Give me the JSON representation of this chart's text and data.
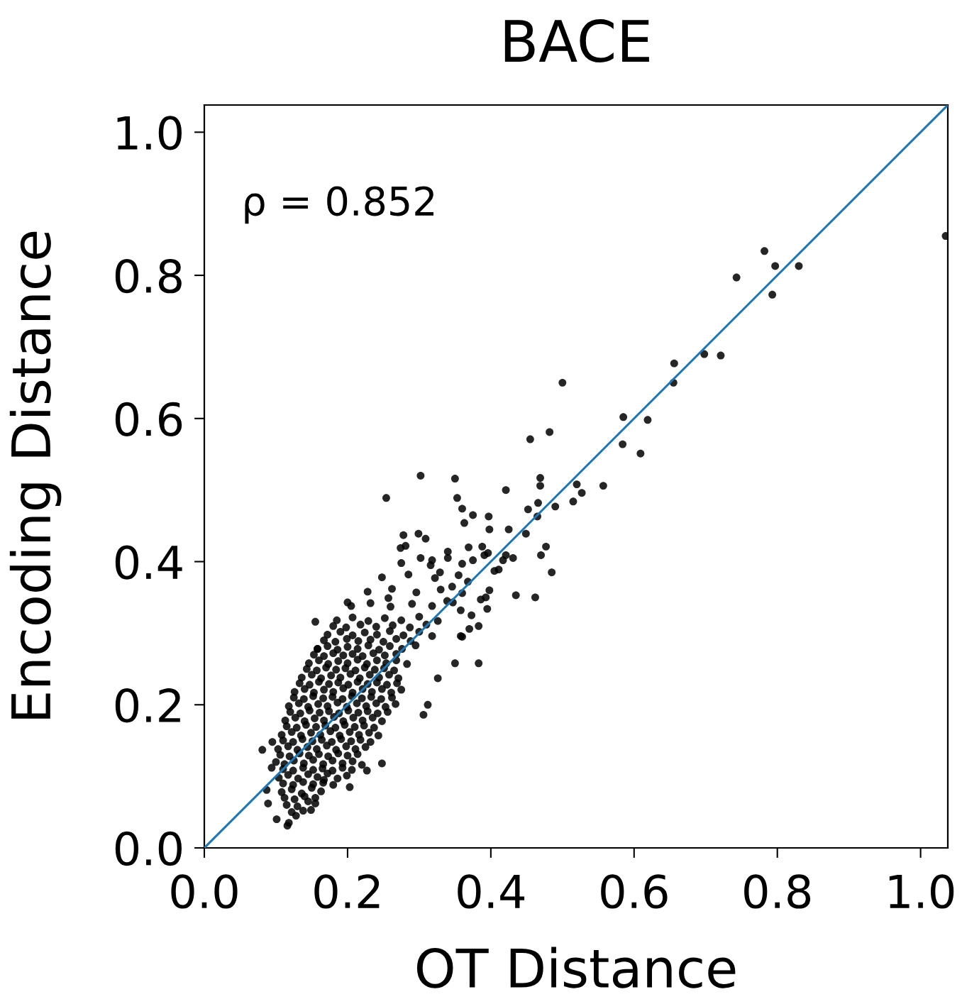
{
  "chart_data": {
    "type": "scatter",
    "title": "BACE",
    "xlabel": "OT Distance",
    "ylabel": "Encoding Distance",
    "annotations": [
      "ρ = 0.852"
    ],
    "xlim": [
      0,
      1.038
    ],
    "ylim": [
      0,
      1.038
    ],
    "xticks": [
      {
        "value": 0,
        "label": "0.0"
      },
      0.2,
      0.4,
      0.6,
      0.8,
      {
        "value": 1,
        "label": "1.0"
      }
    ],
    "yticks": [
      {
        "value": 0,
        "label": "0.0"
      },
      0.2,
      0.4,
      0.6,
      0.8,
      {
        "value": 1,
        "label": "1.0"
      }
    ],
    "series": [
      {
        "color": "#000000",
        "marker": "circle",
        "x": [
          0.118,
          0.128,
          0.115,
          0.13,
          0.145,
          0.108,
          0.122,
          0.136,
          0.15,
          0.163,
          0.104,
          0.117,
          0.131,
          0.145,
          0.158,
          0.172,
          0.186,
          0.199,
          0.1,
          0.112,
          0.125,
          0.139,
          0.152,
          0.166,
          0.179,
          0.193,
          0.207,
          0.22,
          0.103,
          0.117,
          0.13,
          0.144,
          0.157,
          0.171,
          0.184,
          0.198,
          0.211,
          0.225,
          0.108,
          0.122,
          0.135,
          0.149,
          0.162,
          0.176,
          0.189,
          0.203,
          0.216,
          0.23,
          0.243,
          0.113,
          0.127,
          0.14,
          0.154,
          0.167,
          0.181,
          0.194,
          0.208,
          0.221,
          0.235,
          0.248,
          0.118,
          0.132,
          0.145,
          0.159,
          0.172,
          0.186,
          0.199,
          0.213,
          0.226,
          0.24,
          0.253,
          0.267,
          0.126,
          0.14,
          0.153,
          0.167,
          0.18,
          0.194,
          0.207,
          0.221,
          0.234,
          0.248,
          0.261,
          0.275,
          0.136,
          0.15,
          0.163,
          0.177,
          0.19,
          0.204,
          0.217,
          0.231,
          0.244,
          0.258,
          0.271,
          0.146,
          0.16,
          0.173,
          0.187,
          0.2,
          0.214,
          0.227,
          0.241,
          0.254,
          0.268,
          0.283,
          0.158,
          0.172,
          0.186,
          0.2,
          0.214,
          0.229,
          0.244,
          0.259,
          0.276,
          0.295,
          0.172,
          0.19,
          0.207,
          0.224,
          0.241,
          0.259,
          0.278,
          0.3,
          0.318,
          0.185,
          0.207,
          0.229,
          0.252,
          0.275,
          0.3,
          0.326,
          0.205,
          0.232,
          0.26,
          0.29,
          0.318,
          0.347,
          0.228,
          0.262,
          0.296,
          0.33,
          0.36,
          0.248,
          0.285,
          0.322,
          0.355,
          0.275,
          0.318,
          0.36,
          1.035,
          0.782,
          0.797,
          0.83,
          0.743,
          0.793,
          0.698,
          0.721,
          0.656,
          0.655,
          0.5,
          0.585,
          0.619,
          0.584,
          0.609,
          0.482,
          0.455,
          0.302,
          0.35,
          0.469,
          0.469,
          0.254,
          0.421,
          0.353,
          0.52,
          0.527,
          0.557,
          0.515,
          0.49,
          0.466,
          0.36,
          0.452,
          0.363,
          0.375,
          0.397,
          0.449,
          0.425,
          0.477,
          0.47,
          0.485,
          0.435,
          0.462,
          0.278,
          0.299,
          0.309,
          0.281,
          0.34,
          0.34,
          0.257,
          0.383,
          0.393,
          0.405,
          0.417,
          0.396,
          0.388,
          0.369,
          0.081,
          0.095,
          0.094,
          0.087,
          0.089,
          0.101,
          0.116,
          0.155,
          0.167,
          0.203,
          0.227,
          0.248,
          0.155,
          0.306,
          0.312,
          0.35,
          0.36,
          0.326,
          0.149,
          0.2,
          0.158,
          0.465,
          0.421,
          0.398,
          0.395,
          0.383,
          0.37,
          0.358,
          0.274,
          0.302,
          0.316,
          0.375,
          0.391,
          0.411,
          0.431,
          0.398,
          0.386,
          0.373,
          0.358,
          0.339,
          0.329,
          0.346,
          0.368,
          0.122,
          0.138,
          0.112,
          0.126,
          0.14,
          0.155,
          0.11,
          0.124,
          0.138,
          0.152,
          0.166,
          0.18,
          0.11,
          0.124,
          0.138,
          0.152,
          0.165,
          0.179,
          0.193,
          0.206,
          0.106,
          0.119,
          0.133,
          0.146,
          0.16,
          0.173,
          0.187,
          0.2,
          0.214,
          0.11,
          0.124,
          0.137,
          0.151,
          0.164,
          0.178,
          0.191,
          0.205,
          0.218,
          0.232,
          0.115,
          0.129,
          0.142,
          0.156,
          0.169,
          0.183,
          0.196,
          0.21,
          0.223,
          0.237,
          0.12,
          0.134,
          0.147,
          0.161,
          0.174,
          0.188,
          0.201,
          0.215,
          0.228,
          0.242,
          0.256,
          0.125,
          0.139,
          0.152,
          0.166,
          0.179,
          0.193,
          0.206,
          0.22,
          0.233,
          0.247,
          0.262,
          0.133,
          0.147,
          0.16,
          0.174,
          0.187,
          0.201,
          0.214,
          0.228,
          0.241,
          0.255,
          0.269,
          0.143,
          0.157,
          0.17,
          0.184,
          0.197,
          0.211,
          0.224,
          0.238,
          0.251,
          0.265,
          0.153,
          0.167,
          0.18,
          0.194,
          0.207,
          0.221,
          0.236,
          0.252,
          0.268,
          0.167,
          0.183,
          0.199,
          0.215,
          0.232,
          0.25,
          0.268,
          0.288,
          0.18,
          0.198,
          0.218,
          0.24,
          0.263,
          0.287,
          0.31
        ],
        "values": [
          0.035,
          0.045,
          0.06,
          0.058,
          0.065,
          0.078,
          0.082,
          0.076,
          0.084,
          0.079,
          0.098,
          0.102,
          0.097,
          0.103,
          0.099,
          0.104,
          0.097,
          0.101,
          0.12,
          0.117,
          0.122,
          0.118,
          0.123,
          0.117,
          0.122,
          0.118,
          0.121,
          0.116,
          0.138,
          0.142,
          0.137,
          0.141,
          0.138,
          0.143,
          0.137,
          0.142,
          0.138,
          0.141,
          0.158,
          0.162,
          0.157,
          0.161,
          0.158,
          0.163,
          0.157,
          0.162,
          0.158,
          0.161,
          0.157,
          0.178,
          0.182,
          0.177,
          0.181,
          0.178,
          0.183,
          0.177,
          0.182,
          0.178,
          0.182,
          0.177,
          0.198,
          0.202,
          0.197,
          0.201,
          0.198,
          0.203,
          0.197,
          0.202,
          0.198,
          0.202,
          0.197,
          0.201,
          0.218,
          0.222,
          0.217,
          0.221,
          0.218,
          0.223,
          0.217,
          0.222,
          0.218,
          0.222,
          0.217,
          0.221,
          0.238,
          0.242,
          0.237,
          0.241,
          0.238,
          0.243,
          0.237,
          0.242,
          0.238,
          0.242,
          0.237,
          0.258,
          0.262,
          0.257,
          0.261,
          0.258,
          0.263,
          0.257,
          0.262,
          0.258,
          0.262,
          0.257,
          0.278,
          0.282,
          0.277,
          0.281,
          0.278,
          0.283,
          0.277,
          0.282,
          0.278,
          0.283,
          0.298,
          0.302,
          0.297,
          0.301,
          0.298,
          0.303,
          0.297,
          0.302,
          0.296,
          0.318,
          0.322,
          0.317,
          0.321,
          0.318,
          0.323,
          0.317,
          0.338,
          0.342,
          0.337,
          0.341,
          0.338,
          0.343,
          0.358,
          0.362,
          0.357,
          0.361,
          0.356,
          0.378,
          0.382,
          0.377,
          0.381,
          0.398,
          0.402,
          0.397,
          0.855,
          0.834,
          0.813,
          0.813,
          0.797,
          0.773,
          0.69,
          0.688,
          0.677,
          0.65,
          0.65,
          0.602,
          0.598,
          0.564,
          0.551,
          0.581,
          0.571,
          0.52,
          0.516,
          0.517,
          0.506,
          0.489,
          0.5,
          0.489,
          0.508,
          0.496,
          0.506,
          0.484,
          0.477,
          0.482,
          0.474,
          0.473,
          0.454,
          0.465,
          0.463,
          0.439,
          0.445,
          0.421,
          0.409,
          0.385,
          0.353,
          0.35,
          0.437,
          0.439,
          0.432,
          0.422,
          0.414,
          0.405,
          0.349,
          0.258,
          0.35,
          0.387,
          0.402,
          0.412,
          0.421,
          0.42,
          0.137,
          0.148,
          0.112,
          0.081,
          0.062,
          0.04,
          0.031,
          0.062,
          0.095,
          0.085,
          0.108,
          0.118,
          0.316,
          0.186,
          0.2,
          0.258,
          0.295,
          0.237,
          0.053,
          0.343,
          0.278,
          0.463,
          0.409,
          0.445,
          0.334,
          0.31,
          0.306,
          0.296,
          0.419,
          0.405,
          0.395,
          0.402,
          0.409,
          0.389,
          0.405,
          0.36,
          0.347,
          0.325,
          0.332,
          0.345,
          0.385,
          0.365,
          0.372,
          0.05,
          0.052,
          0.07,
          0.068,
          0.072,
          0.07,
          0.09,
          0.088,
          0.092,
          0.089,
          0.091,
          0.088,
          0.11,
          0.108,
          0.112,
          0.109,
          0.111,
          0.108,
          0.112,
          0.109,
          0.13,
          0.128,
          0.132,
          0.129,
          0.131,
          0.128,
          0.132,
          0.129,
          0.131,
          0.15,
          0.148,
          0.152,
          0.149,
          0.151,
          0.148,
          0.152,
          0.149,
          0.151,
          0.148,
          0.17,
          0.168,
          0.172,
          0.169,
          0.171,
          0.168,
          0.172,
          0.169,
          0.171,
          0.168,
          0.19,
          0.188,
          0.192,
          0.189,
          0.191,
          0.188,
          0.192,
          0.189,
          0.191,
          0.188,
          0.19,
          0.21,
          0.208,
          0.212,
          0.209,
          0.211,
          0.208,
          0.212,
          0.209,
          0.211,
          0.208,
          0.21,
          0.23,
          0.228,
          0.232,
          0.229,
          0.231,
          0.228,
          0.232,
          0.229,
          0.231,
          0.228,
          0.23,
          0.25,
          0.248,
          0.252,
          0.249,
          0.251,
          0.248,
          0.252,
          0.249,
          0.251,
          0.248,
          0.27,
          0.268,
          0.272,
          0.269,
          0.271,
          0.268,
          0.272,
          0.269,
          0.271,
          0.29,
          0.288,
          0.292,
          0.289,
          0.291,
          0.288,
          0.292,
          0.289,
          0.31,
          0.308,
          0.312,
          0.309,
          0.311,
          0.308,
          0.312
        ]
      },
      {
        "type": "line",
        "color": "#1f77b4",
        "line_style": "solid",
        "x": [
          0,
          1.038
        ],
        "values": [
          0,
          1.038
        ]
      }
    ]
  }
}
